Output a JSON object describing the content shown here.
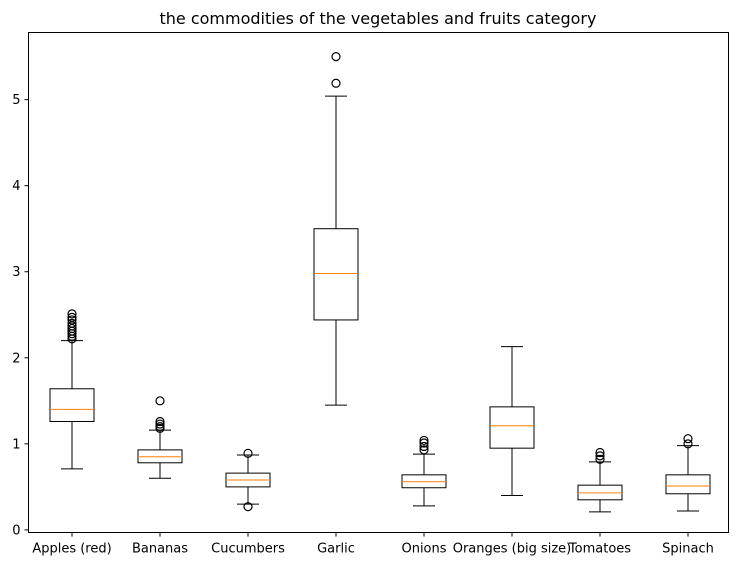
{
  "chart_data": {
    "type": "box",
    "title": "the  commodities of the vegetables and fruits category",
    "xlabel": "",
    "ylabel": "",
    "ylim": [
      -0.03,
      5.78
    ],
    "yticks": [
      0,
      1,
      2,
      3,
      4,
      5
    ],
    "grid": false,
    "colors": {
      "box": "#000000",
      "median": "#ff7f0e",
      "background": "#ffffff"
    },
    "categories": [
      "Apples (red)",
      "Bananas",
      "Cucumbers",
      "Garlic",
      "Onions",
      "Oranges (big size)",
      "Tomatoes",
      "Spinach"
    ],
    "boxes": [
      {
        "whisker_low": 0.71,
        "q1": 1.26,
        "median": 1.4,
        "q3": 1.64,
        "whisker_high": 2.2,
        "outliers": [
          2.22,
          2.25,
          2.28,
          2.31,
          2.34,
          2.37,
          2.4,
          2.44,
          2.47,
          2.51
        ]
      },
      {
        "whisker_low": 0.6,
        "q1": 0.78,
        "median": 0.85,
        "q3": 0.93,
        "whisker_high": 1.16,
        "outliers": [
          1.18,
          1.2,
          1.23,
          1.26,
          1.5
        ]
      },
      {
        "whisker_low": 0.3,
        "q1": 0.5,
        "median": 0.58,
        "q3": 0.66,
        "whisker_high": 0.87,
        "outliers": [
          0.27,
          0.89
        ]
      },
      {
        "whisker_low": 1.45,
        "q1": 2.44,
        "median": 2.98,
        "q3": 3.5,
        "whisker_high": 5.04,
        "outliers": [
          5.19,
          5.5
        ]
      },
      {
        "whisker_low": 0.28,
        "q1": 0.49,
        "median": 0.56,
        "q3": 0.64,
        "whisker_high": 0.88,
        "outliers": [
          0.93,
          0.97,
          1.01,
          1.04
        ]
      },
      {
        "whisker_low": 0.4,
        "q1": 0.95,
        "median": 1.21,
        "q3": 1.43,
        "whisker_high": 2.13,
        "outliers": []
      },
      {
        "whisker_low": 0.21,
        "q1": 0.35,
        "median": 0.43,
        "q3": 0.52,
        "whisker_high": 0.79,
        "outliers": [
          0.82,
          0.86,
          0.9
        ]
      },
      {
        "whisker_low": 0.22,
        "q1": 0.42,
        "median": 0.51,
        "q3": 0.64,
        "whisker_high": 0.98,
        "outliers": [
          1.0,
          1.06
        ]
      }
    ]
  }
}
